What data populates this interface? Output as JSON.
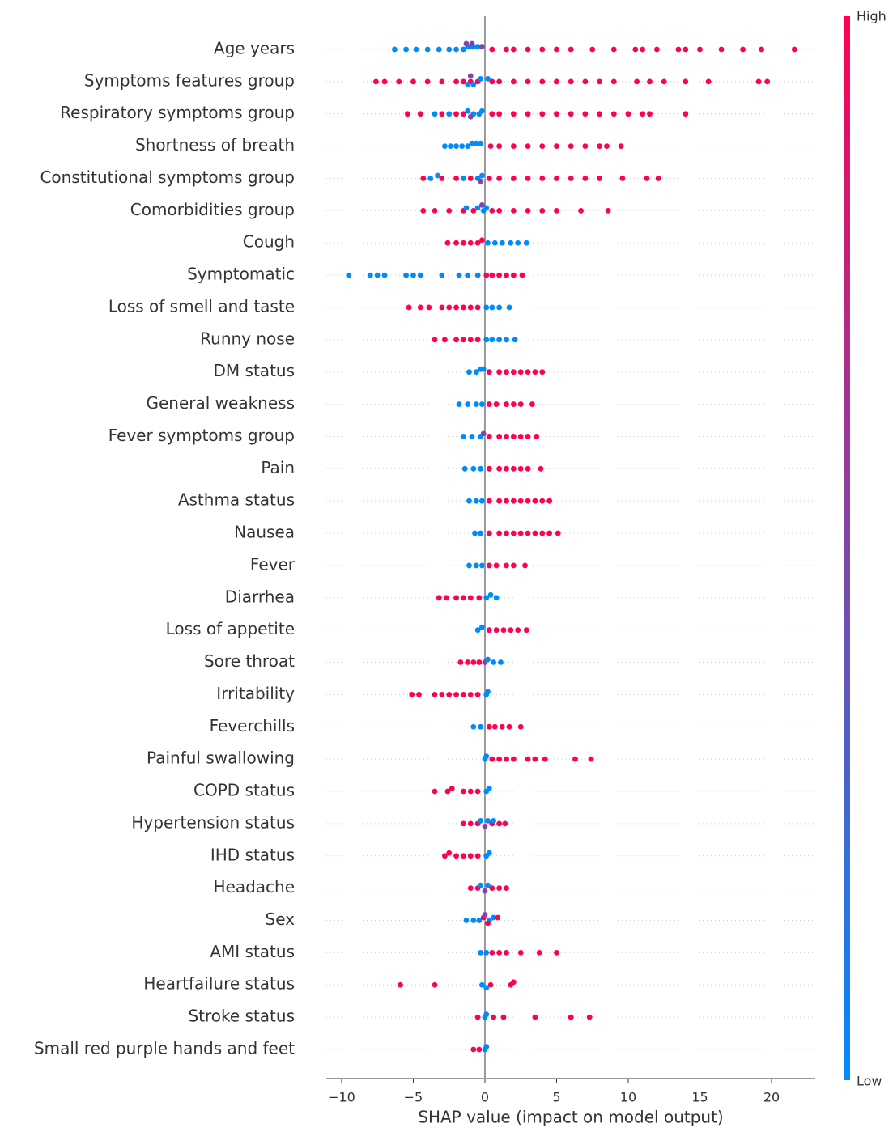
{
  "chart_data": {
    "type": "beeswarm",
    "x_label": "SHAP value (impact on model output)",
    "xlim": [
      -11.07,
      23.05
    ],
    "xticks": [
      {
        "value": -10,
        "label": "−10"
      },
      {
        "value": -5,
        "label": "−5"
      },
      0,
      5,
      10,
      15,
      20
    ],
    "colorbar": {
      "high_label": "High",
      "low_label": "Low",
      "high_color": "#ff0052",
      "low_color": "#008bfb"
    },
    "series": [
      {
        "name": "Age years",
        "values": [
          -6.3,
          -5.5,
          -4.8,
          -4,
          -3.2,
          -2.5,
          -2,
          -1.5,
          -1.2,
          -1,
          -0.8,
          -0.5,
          -1.3,
          -0.9,
          -0.2,
          0.5,
          1.5,
          3,
          5,
          7.5,
          9,
          10.5,
          12,
          13.5,
          15,
          16.5,
          18,
          19.3,
          21.6,
          11,
          14,
          2,
          4,
          6
        ],
        "feature_values": [
          0,
          0,
          0,
          0,
          0,
          0,
          0,
          0,
          0,
          0,
          0,
          0,
          0.5,
          0.5,
          0.5,
          1,
          1,
          1,
          1,
          1,
          1,
          1,
          1,
          1,
          1,
          1,
          1,
          1,
          1,
          1,
          1,
          1,
          1,
          1
        ]
      },
      {
        "name": "Symptoms features group",
        "values": [
          -7.6,
          -7,
          -6,
          -5,
          -4,
          -3,
          -2,
          -1.5,
          -1,
          -0.5,
          0.5,
          1,
          2,
          3,
          4,
          5,
          6,
          7,
          8,
          9,
          10.6,
          11.5,
          12.5,
          14,
          15.6,
          19.1,
          19.7,
          -1.2,
          -0.8,
          -0.3,
          0.2,
          -1.0
        ],
        "feature_values": [
          1,
          1,
          1,
          1,
          1,
          1,
          1,
          1,
          1,
          1,
          1,
          1,
          1,
          1,
          1,
          1,
          1,
          1,
          1,
          1,
          1,
          1,
          1,
          1,
          1,
          1,
          1,
          0,
          0,
          0,
          0,
          0.5
        ]
      },
      {
        "name": "Respiratory symptoms group",
        "values": [
          -5.4,
          -4.5,
          -3,
          -2,
          -1.5,
          0.5,
          1,
          2,
          3,
          4,
          5,
          6,
          7,
          8,
          9,
          10,
          11,
          11.5,
          14,
          -3.5,
          -2.5,
          -1.2,
          -0.8,
          -0.4,
          -0.2,
          -1
        ],
        "feature_values": [
          1,
          1,
          1,
          1,
          1,
          1,
          1,
          1,
          1,
          1,
          1,
          1,
          1,
          1,
          1,
          1,
          1,
          1,
          1,
          0,
          0,
          0,
          0,
          0,
          0,
          0.5
        ]
      },
      {
        "name": "Shortness of breath",
        "values": [
          -2.8,
          -2.4,
          -2,
          -1.6,
          -1.2,
          -0.9,
          -0.6,
          -0.3,
          0.4,
          1,
          2,
          3,
          4,
          5,
          6,
          7,
          8,
          8.5,
          9.5
        ],
        "feature_values": [
          0,
          0,
          0,
          0,
          0,
          0,
          0,
          0,
          1,
          1,
          1,
          1,
          1,
          1,
          1,
          1,
          1,
          1,
          1
        ]
      },
      {
        "name": "Constitutional symptoms group",
        "values": [
          -4.3,
          -3,
          -2,
          -1,
          0.3,
          1,
          2,
          3,
          4,
          5,
          6,
          7,
          8,
          9.6,
          11.3,
          12.1,
          -3.8,
          -3.3,
          -1.5,
          -0.5,
          -0.2,
          -0.3
        ],
        "feature_values": [
          1,
          1,
          1,
          1,
          1,
          1,
          1,
          1,
          1,
          1,
          1,
          1,
          1,
          1,
          1,
          1,
          0,
          0,
          0,
          0,
          0,
          0.5
        ]
      },
      {
        "name": "Comorbidities group",
        "values": [
          -4.3,
          -3.5,
          -2.5,
          -1.5,
          -0.8,
          0.5,
          1,
          2,
          3,
          4,
          5,
          6.7,
          8.6,
          -1.3,
          -0.5,
          -0.1,
          0.1,
          -0.2
        ],
        "feature_values": [
          1,
          1,
          1,
          1,
          1,
          1,
          1,
          1,
          1,
          1,
          1,
          1,
          1,
          0,
          0,
          0,
          0,
          0.5
        ]
      },
      {
        "name": "Cough",
        "values": [
          -2.6,
          -2,
          -1.5,
          -1,
          -0.5,
          -0.2,
          0.2,
          0.7,
          1.2,
          1.8,
          2.3,
          2.9
        ],
        "feature_values": [
          1,
          1,
          1,
          1,
          1,
          1,
          0,
          0,
          0,
          0,
          0,
          0
        ]
      },
      {
        "name": "Symptomatic",
        "values": [
          -9.5,
          -8,
          -7.5,
          -7,
          -5.5,
          -5,
          -4.5,
          -3,
          -1.8,
          -1.2,
          -0.5,
          0.1,
          0.5,
          1,
          1.5,
          2,
          2.6
        ],
        "feature_values": [
          0,
          0,
          0,
          0,
          0,
          0,
          0,
          0,
          0,
          0,
          0,
          1,
          1,
          1,
          1,
          1,
          1
        ]
      },
      {
        "name": "Loss of smell and taste",
        "values": [
          -5.3,
          -4.5,
          -3.9,
          -3,
          -2.5,
          -2,
          -1.5,
          -1,
          -0.5,
          0.1,
          0.5,
          1,
          1.7
        ],
        "feature_values": [
          1,
          1,
          1,
          1,
          1,
          1,
          1,
          1,
          1,
          0,
          0,
          0,
          0
        ]
      },
      {
        "name": "Runny nose",
        "values": [
          -3.5,
          -2.8,
          -2,
          -1.5,
          -1,
          -0.5,
          0.1,
          0.5,
          1,
          1.5,
          2.1
        ],
        "feature_values": [
          1,
          1,
          1,
          1,
          1,
          1,
          0,
          0,
          0,
          0,
          0
        ]
      },
      {
        "name": "DM status",
        "values": [
          -1.1,
          -0.6,
          -0.3,
          -0.1,
          0.3,
          1,
          1.5,
          2,
          2.5,
          3,
          3.5,
          4
        ],
        "feature_values": [
          0,
          0,
          0,
          0,
          1,
          1,
          1,
          1,
          1,
          1,
          1,
          1
        ]
      },
      {
        "name": "General weakness",
        "values": [
          -1.8,
          -1.2,
          -0.6,
          -0.2,
          0.3,
          0.8,
          1.5,
          2,
          2.5,
          3.3
        ],
        "feature_values": [
          0,
          0,
          0,
          0,
          1,
          1,
          1,
          1,
          1,
          1
        ]
      },
      {
        "name": "Fever symptoms group",
        "values": [
          -1.5,
          -0.9,
          -0.3,
          -0.1,
          0.3,
          1,
          1.5,
          2,
          2.5,
          3,
          3.6
        ],
        "feature_values": [
          0,
          0,
          0,
          0.5,
          1,
          1,
          1,
          1,
          1,
          1,
          1
        ]
      },
      {
        "name": "Pain",
        "values": [
          -1.4,
          -0.8,
          -0.3,
          0.3,
          1,
          1.5,
          2,
          2.5,
          3,
          3.9
        ],
        "feature_values": [
          0,
          0,
          0,
          1,
          1,
          1,
          1,
          1,
          1,
          1
        ]
      },
      {
        "name": "Asthma status",
        "values": [
          -1.1,
          -0.6,
          -0.2,
          0.3,
          1,
          1.5,
          2,
          2.5,
          3,
          3.5,
          4,
          4.5
        ],
        "feature_values": [
          0,
          0,
          0,
          1,
          1,
          1,
          1,
          1,
          1,
          1,
          1,
          1
        ]
      },
      {
        "name": "Nausea",
        "values": [
          -0.7,
          -0.3,
          0.3,
          1,
          1.5,
          2,
          2.5,
          3,
          3.5,
          4,
          4.5,
          5.1
        ],
        "feature_values": [
          0,
          0,
          1,
          1,
          1,
          1,
          1,
          1,
          1,
          1,
          1,
          1
        ]
      },
      {
        "name": "Fever",
        "values": [
          -1.1,
          -0.6,
          -0.2,
          0.3,
          0.8,
          1.5,
          2,
          2.8
        ],
        "feature_values": [
          0,
          0,
          0,
          1,
          1,
          1,
          1,
          1
        ]
      },
      {
        "name": "Diarrhea",
        "values": [
          -3.2,
          -2.7,
          -2,
          -1.5,
          -1,
          -0.4,
          0.1,
          0.4,
          0.8
        ],
        "feature_values": [
          1,
          1,
          1,
          1,
          1,
          1,
          0,
          0,
          0
        ]
      },
      {
        "name": "Loss of appetite",
        "values": [
          -0.5,
          -0.2,
          0.3,
          0.8,
          1.3,
          1.8,
          2.3,
          2.9
        ],
        "feature_values": [
          0,
          0,
          1,
          1,
          1,
          1,
          1,
          1
        ]
      },
      {
        "name": "Sore throat",
        "values": [
          -1.7,
          -1.2,
          -0.8,
          -0.4,
          0,
          0.2,
          0.6,
          1.1
        ],
        "feature_values": [
          1,
          1,
          1,
          1,
          0.5,
          0,
          0,
          0
        ]
      },
      {
        "name": "Irritability",
        "values": [
          -5.1,
          -4.6,
          -3.5,
          -3,
          -2.5,
          -2,
          -1.5,
          -1,
          -0.5,
          0.1,
          0.2
        ],
        "feature_values": [
          1,
          1,
          1,
          1,
          1,
          1,
          1,
          1,
          1,
          0,
          0
        ]
      },
      {
        "name": "Feverchills",
        "values": [
          -0.8,
          -0.3,
          0.3,
          0.7,
          1.2,
          1.7,
          2.5
        ],
        "feature_values": [
          0,
          0,
          1,
          1,
          1,
          1,
          1
        ]
      },
      {
        "name": "Painful swallowing",
        "values": [
          0,
          0.1,
          0.5,
          1,
          1.5,
          2,
          3,
          3.5,
          4.2,
          6.3,
          7.4
        ],
        "feature_values": [
          0,
          0,
          1,
          1,
          1,
          1,
          1,
          1,
          1,
          1,
          1
        ]
      },
      {
        "name": "COPD status",
        "values": [
          -3.5,
          -2.6,
          -2.3,
          -1.5,
          -1,
          -0.5,
          0.1,
          0.3
        ],
        "feature_values": [
          1,
          1,
          1,
          1,
          1,
          1,
          0,
          0
        ]
      },
      {
        "name": "Hypertension status",
        "values": [
          -1.5,
          -1,
          -0.5,
          0.5,
          1,
          1.4,
          -0.3,
          0.2,
          0.6,
          0
        ],
        "feature_values": [
          1,
          1,
          1,
          1,
          1,
          1,
          0,
          0,
          0,
          0.5
        ]
      },
      {
        "name": "IHD status",
        "values": [
          -2.8,
          -2.5,
          -2,
          -1.5,
          -1,
          -0.5,
          0.1,
          0.3
        ],
        "feature_values": [
          1,
          1,
          1,
          1,
          1,
          1,
          0,
          0
        ]
      },
      {
        "name": "Headache",
        "values": [
          -1,
          -0.5,
          0.5,
          1,
          1.5,
          -0.3,
          0.2,
          0
        ],
        "feature_values": [
          1,
          1,
          1,
          1,
          1,
          0,
          0,
          0.5
        ]
      },
      {
        "name": "Sex",
        "values": [
          -1.3,
          -0.8,
          -0.4,
          0.3,
          0.6,
          -0.1,
          0.2,
          0.9,
          0
        ],
        "feature_values": [
          0,
          0,
          0,
          0,
          0,
          1,
          1,
          1,
          0.5
        ]
      },
      {
        "name": "AMI status",
        "values": [
          -0.3,
          0.1,
          0.5,
          1,
          1.5,
          2.5,
          3.8,
          5
        ],
        "feature_values": [
          0,
          0,
          1,
          1,
          1,
          1,
          1,
          1
        ]
      },
      {
        "name": "Heartfailure status",
        "values": [
          -5.9,
          -3.5,
          0.4,
          1.8,
          2,
          -0.2,
          0.1
        ],
        "feature_values": [
          1,
          1,
          1,
          1,
          1,
          0,
          0
        ]
      },
      {
        "name": "Stroke status",
        "values": [
          -0.5,
          0.6,
          1.3,
          3.5,
          6,
          7.3,
          0,
          0.1
        ],
        "feature_values": [
          1,
          1,
          1,
          1,
          1,
          1,
          0,
          0
        ]
      },
      {
        "name": "Small red purple hands and feet",
        "values": [
          -0.8,
          -0.4,
          0,
          0.1
        ],
        "feature_values": [
          1,
          1,
          0,
          0
        ]
      }
    ]
  }
}
